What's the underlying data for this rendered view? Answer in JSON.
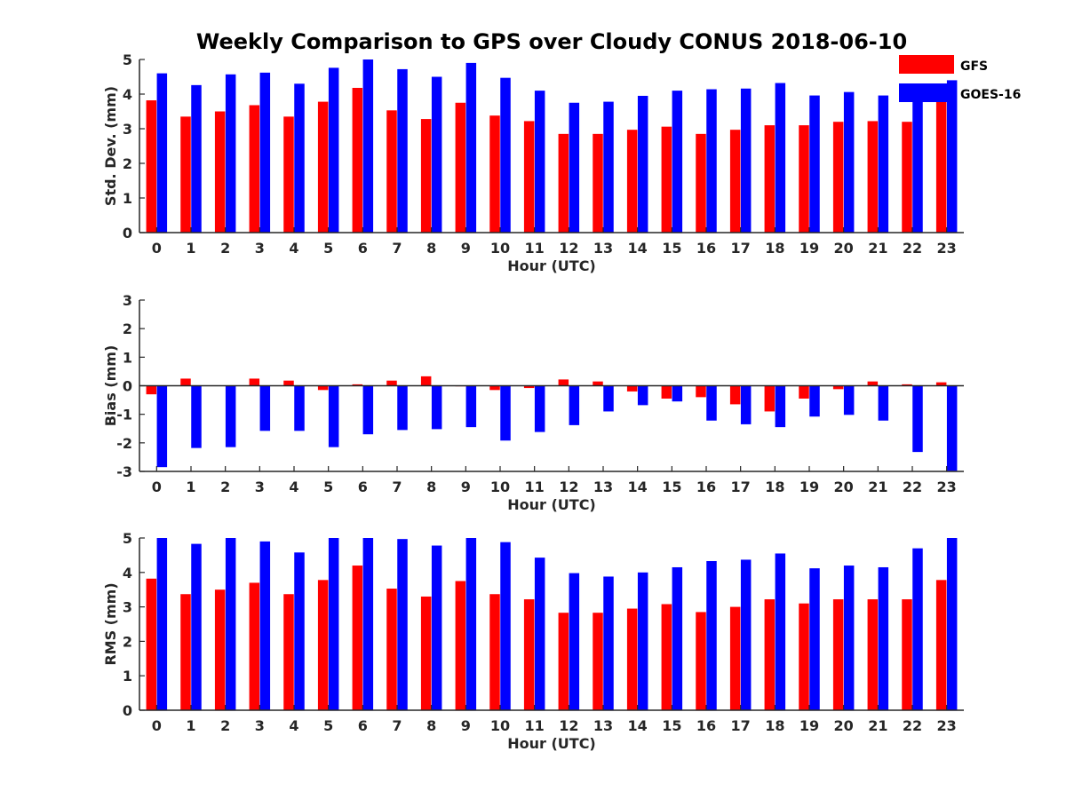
{
  "title": "Weekly Comparison to GPS over Cloudy CONUS 2018-06-10",
  "legend": {
    "placement": "top-right",
    "items": [
      {
        "label": "GFS",
        "color": "#ff0000"
      },
      {
        "label": "GOES-16",
        "color": "#0000ff"
      }
    ]
  },
  "chart_data": [
    {
      "type": "bar",
      "xlabel": "Hour (UTC)",
      "ylabel": "Std. Dev. (mm)",
      "ylim": [
        0,
        5
      ],
      "yticks": [
        0,
        1,
        2,
        3,
        4,
        5
      ],
      "categories": [
        "0",
        "1",
        "2",
        "3",
        "4",
        "5",
        "6",
        "7",
        "8",
        "9",
        "10",
        "11",
        "12",
        "13",
        "14",
        "15",
        "16",
        "17",
        "18",
        "19",
        "20",
        "21",
        "22",
        "23"
      ],
      "series": [
        {
          "name": "GFS",
          "color": "#ff0000",
          "values": [
            3.82,
            3.35,
            3.5,
            3.68,
            3.35,
            3.78,
            4.18,
            3.53,
            3.28,
            3.75,
            3.38,
            3.22,
            2.85,
            2.85,
            2.97,
            3.06,
            2.85,
            2.97,
            3.1,
            3.1,
            3.2,
            3.22,
            3.2,
            3.8
          ]
        },
        {
          "name": "GOES-16",
          "color": "#0000ff",
          "values": [
            4.6,
            4.26,
            4.57,
            4.62,
            4.3,
            4.76,
            5.0,
            4.72,
            4.5,
            4.9,
            4.47,
            4.1,
            3.75,
            3.78,
            3.95,
            4.1,
            4.14,
            4.16,
            4.32,
            3.96,
            4.06,
            3.96,
            4.05,
            4.4
          ]
        }
      ]
    },
    {
      "type": "bar",
      "xlabel": "Hour (UTC)",
      "ylabel": "Bias (mm)",
      "ylim": [
        -3,
        3
      ],
      "yticks": [
        -3,
        -2,
        -1,
        0,
        1,
        2,
        3
      ],
      "categories": [
        "0",
        "1",
        "2",
        "3",
        "4",
        "5",
        "6",
        "7",
        "8",
        "9",
        "10",
        "11",
        "12",
        "13",
        "14",
        "15",
        "16",
        "17",
        "18",
        "19",
        "20",
        "21",
        "22",
        "23"
      ],
      "series": [
        {
          "name": "GFS",
          "color": "#ff0000",
          "values": [
            -0.3,
            0.25,
            0.0,
            0.25,
            0.18,
            -0.15,
            0.05,
            0.18,
            0.33,
            -0.02,
            -0.15,
            -0.08,
            0.22,
            0.15,
            -0.2,
            -0.45,
            -0.4,
            -0.65,
            -0.9,
            -0.45,
            -0.12,
            0.15,
            0.05,
            0.12
          ]
        },
        {
          "name": "GOES-16",
          "color": "#0000ff",
          "values": [
            -2.85,
            -2.18,
            -2.15,
            -1.58,
            -1.58,
            -2.15,
            -1.7,
            -1.55,
            -1.52,
            -1.45,
            -1.92,
            -1.62,
            -1.38,
            -0.9,
            -0.68,
            -0.55,
            -1.22,
            -1.35,
            -1.45,
            -1.08,
            -1.02,
            -1.22,
            -2.32,
            -2.98
          ]
        }
      ]
    },
    {
      "type": "bar",
      "xlabel": "Hour (UTC)",
      "ylabel": "RMS (mm)",
      "ylim": [
        0,
        5
      ],
      "yticks": [
        0,
        1,
        2,
        3,
        4,
        5
      ],
      "categories": [
        "0",
        "1",
        "2",
        "3",
        "4",
        "5",
        "6",
        "7",
        "8",
        "9",
        "10",
        "11",
        "12",
        "13",
        "14",
        "15",
        "16",
        "17",
        "18",
        "19",
        "20",
        "21",
        "22",
        "23"
      ],
      "series": [
        {
          "name": "GFS",
          "color": "#ff0000",
          "values": [
            3.82,
            3.37,
            3.5,
            3.7,
            3.37,
            3.78,
            4.2,
            3.53,
            3.3,
            3.75,
            3.37,
            3.22,
            2.83,
            2.83,
            2.95,
            3.08,
            2.85,
            3.0,
            3.22,
            3.1,
            3.22,
            3.22,
            3.22,
            3.78
          ]
        },
        {
          "name": "GOES-16",
          "color": "#0000ff",
          "values": [
            5.0,
            4.83,
            5.0,
            4.9,
            4.58,
            5.0,
            5.0,
            4.97,
            4.78,
            5.0,
            4.88,
            4.43,
            3.98,
            3.88,
            4.0,
            4.15,
            4.33,
            4.37,
            4.55,
            4.12,
            4.2,
            4.15,
            4.7,
            5.0
          ]
        }
      ]
    }
  ]
}
